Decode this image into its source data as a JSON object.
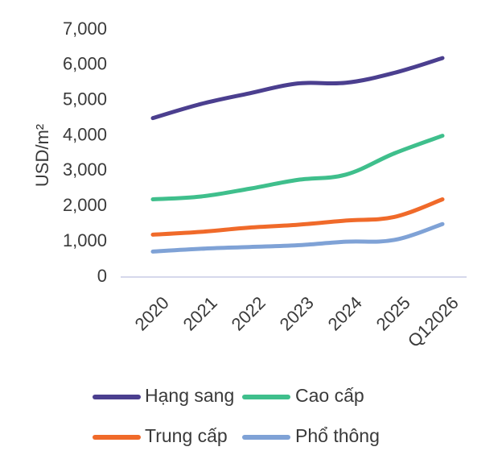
{
  "chart_data": {
    "type": "line",
    "title": "",
    "xlabel": "",
    "ylabel": "USD/m²",
    "categories": [
      "2020",
      "2021",
      "2022",
      "2023",
      "2024",
      "2025",
      "Q12026"
    ],
    "ylim": [
      0,
      7000
    ],
    "yticks": [
      0,
      1000,
      2000,
      3000,
      4000,
      5000,
      6000,
      7000
    ],
    "ytick_labels": [
      "0",
      "1,000",
      "2,000",
      "3,000",
      "4,000",
      "5,000",
      "6,000",
      "7,000"
    ],
    "grid": false,
    "legend_position": "bottom",
    "series": [
      {
        "name": "Hạng sang",
        "color": "#4b3f8f",
        "values": [
          4500,
          4900,
          5200,
          5480,
          5500,
          5780,
          6200
        ]
      },
      {
        "name": "Cao cấp",
        "color": "#3fbf8c",
        "values": [
          2200,
          2280,
          2500,
          2750,
          2900,
          3500,
          4000
        ]
      },
      {
        "name": "Trung cấp",
        "color": "#f06a2a",
        "values": [
          1200,
          1280,
          1400,
          1480,
          1600,
          1700,
          2200
        ]
      },
      {
        "name": "Phổ thông",
        "color": "#7fa2d6",
        "values": [
          720,
          800,
          850,
          900,
          1000,
          1050,
          1500
        ]
      }
    ]
  }
}
